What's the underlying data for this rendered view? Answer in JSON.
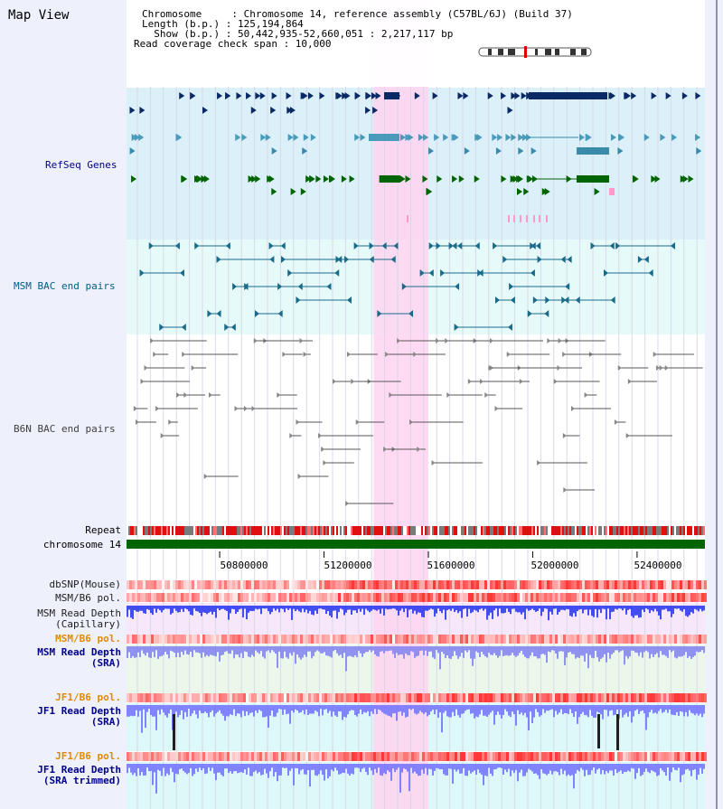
{
  "title": "Map View",
  "info": {
    "chromosome": "Chromosome     : Chromosome 14, reference assembly (C57BL/6J) (Build 37)",
    "length": "Length (b.p.) : 125,194,864",
    "show": "  Show (b.p.) : 50,442,935-52,660,051 : 2,217,117 bp",
    "coverage": "Read coverage check span : 10,000"
  },
  "tracks": {
    "refseq": "RefSeq Genes",
    "msm_bac": "MSM BAC end pairs",
    "b6n_bac": "B6N BAC end pairs",
    "repeat": "Repeat",
    "chrom": "chromosome 14",
    "dbsnp": "dbSNP(Mouse)",
    "msm_pol": "MSM/B6 pol.",
    "msm_depth_cap": "MSM Read Depth\n(Capillary)",
    "msm_pol2": "MSM/B6 pol.",
    "msm_depth_sra": "MSM Read Depth\n(SRA)",
    "jf1_pol": "JF1/B6 pol.",
    "jf1_depth_sra": "JF1 Read Depth\n(SRA)",
    "jf1_pol2": "JF1/B6 pol.",
    "jf1_depth_trim": "JF1 Read Depth\n(SRA trimmed)"
  },
  "axis": {
    "ticks": [
      "50800000",
      "51200000",
      "51600000",
      "52000000",
      "52400000"
    ],
    "tick_values": [
      50800000,
      51200000,
      51600000,
      52000000,
      52400000
    ],
    "start": 50442935,
    "end": 52660051
  },
  "highlight": {
    "start": 51390000,
    "end": 51600000
  },
  "colors": {
    "refseq_label": "#00008b",
    "msm_label": "#006080",
    "b6n_label": "#404040",
    "orange": "#e08a00",
    "blue_label": "#00008b",
    "highlight": "#ffd4f0"
  }
}
